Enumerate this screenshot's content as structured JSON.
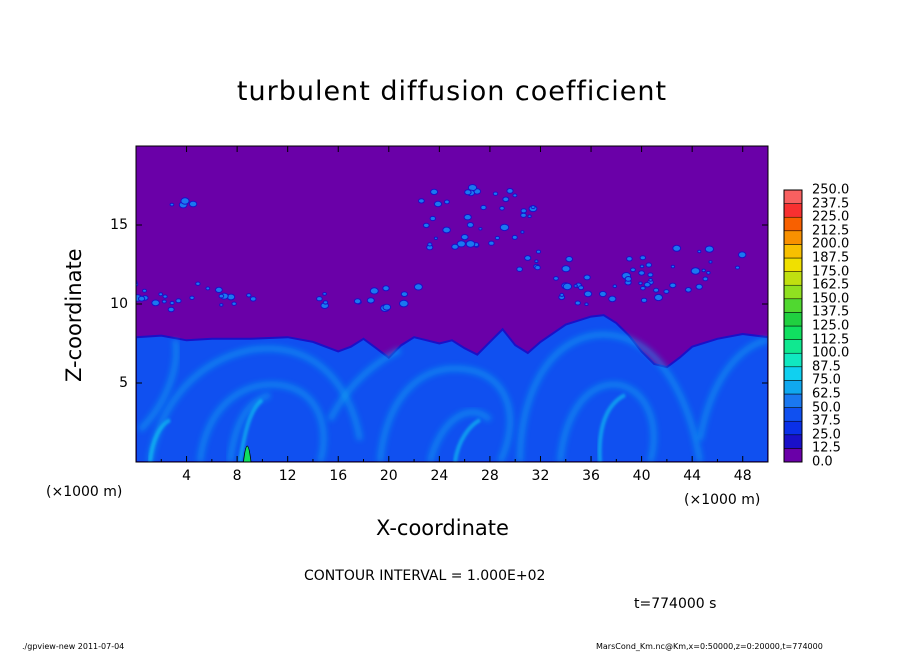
{
  "chart_data": {
    "type": "heatmap",
    "title": "turbulent diffusion coefficient",
    "xlabel": "X-coordinate",
    "ylabel": "Z-coordinate",
    "x_unit_label": "(×1000 m)",
    "xlim": [
      0,
      50
    ],
    "ylim": [
      0,
      20
    ],
    "xticks": [
      4,
      8,
      12,
      16,
      20,
      24,
      28,
      32,
      36,
      40,
      44,
      48
    ],
    "yticks": [
      5,
      10,
      15
    ],
    "colorbar": {
      "levels": [
        "0.0",
        "12.5",
        "25.0",
        "37.5",
        "50.0",
        "62.5",
        "75.0",
        "87.5",
        "100.0",
        "112.5",
        "125.0",
        "137.5",
        "150.0",
        "162.5",
        "175.0",
        "187.5",
        "200.0",
        "212.5",
        "225.0",
        "237.5",
        "250.0"
      ],
      "colors": [
        "#6a00a8",
        "#1a10c8",
        "#0a30e8",
        "#1050f0",
        "#1a78f0",
        "#10a8f0",
        "#10d0f0",
        "#10e8c0",
        "#10e890",
        "#10e060",
        "#20d040",
        "#50d830",
        "#90e020",
        "#c0e010",
        "#f0e000",
        "#f8c000",
        "#f89000",
        "#f86000",
        "#f83030",
        "#f86060"
      ]
    },
    "background_value": "0.0",
    "contour_interval": "CONTOUR INTERVAL = 1.000E+02",
    "time_label": "t=774000 s"
  },
  "footer": {
    "left": "./gpview-new   2011-07-04",
    "right": "MarsCond_Km.nc@Km,x=0:50000,z=0:20000,t=774000"
  }
}
